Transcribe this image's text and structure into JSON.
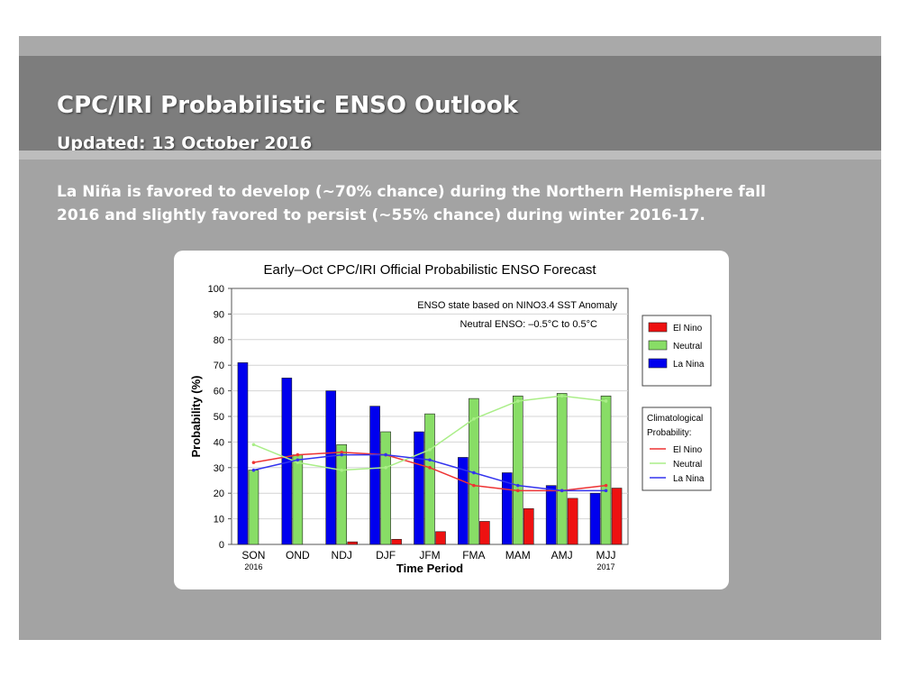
{
  "header": {
    "title": "CPC/IRI Probabilistic ENSO Outlook",
    "updated": "Updated: 13 October 2016"
  },
  "summary": {
    "line1": "La Niña is favored to develop (~70% chance) during the Northern Hemisphere fall",
    "line2": "2016 and slightly favored to persist (~55% chance) during winter 2016-17."
  },
  "chart_data": {
    "type": "bar",
    "title": "Early–Oct CPC/IRI Official Probabilistic ENSO Forecast",
    "xlabel": "Time Period",
    "ylabel": "Probability (%)",
    "ylim": [
      0,
      100
    ],
    "yticks": [
      0,
      10,
      20,
      30,
      40,
      50,
      60,
      70,
      80,
      90,
      100
    ],
    "grid": true,
    "legend_position": "right",
    "categories": [
      "SON",
      "OND",
      "NDJ",
      "DJF",
      "JFM",
      "FMA",
      "MAM",
      "AMJ",
      "MJJ"
    ],
    "category_sublabels": [
      "2016",
      "",
      "",
      "",
      "",
      "",
      "",
      "",
      "2017"
    ],
    "series": [
      {
        "name": "La Nina",
        "color": "#0000ee",
        "values": [
          71,
          65,
          60,
          54,
          44,
          34,
          28,
          23,
          20
        ]
      },
      {
        "name": "Neutral",
        "color": "#88dd66",
        "values": [
          29,
          35,
          39,
          44,
          51,
          57,
          58,
          59,
          58
        ]
      },
      {
        "name": "El Nino",
        "color": "#ee1111",
        "values": [
          0,
          0,
          1,
          2,
          5,
          9,
          14,
          18,
          22
        ]
      }
    ],
    "climatology": {
      "title_line1": "Climatological",
      "title_line2": "Probability:",
      "series": [
        {
          "name": "El Nino",
          "color": "#ee3333",
          "values": [
            32,
            35,
            36,
            35,
            30,
            23,
            21,
            21,
            23
          ]
        },
        {
          "name": "Neutral",
          "color": "#aaee88",
          "values": [
            39,
            32,
            29,
            30,
            37,
            49,
            56,
            58,
            56
          ]
        },
        {
          "name": "La Nina",
          "color": "#3333ee",
          "values": [
            29,
            33,
            35,
            35,
            33,
            28,
            23,
            21,
            21
          ]
        }
      ]
    },
    "annotations": {
      "line1": "ENSO state based on NINO3.4 SST Anomaly",
      "line2": "Neutral ENSO: –0.5°C to 0.5°C"
    }
  }
}
